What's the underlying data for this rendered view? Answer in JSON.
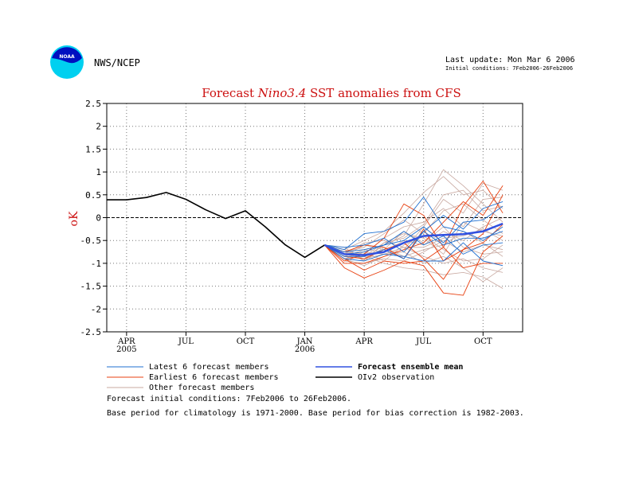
{
  "header": {
    "org": "NWS/NCEP",
    "last_update": "Last update: Mon Mar  6 2006",
    "initial_conditions": "Initial conditions: 7Feb2006-26Feb2006",
    "logo_text": "NOAA"
  },
  "chart_data": {
    "type": "line",
    "title_prefix": "Forecast ",
    "title_italic": "Nino3.4",
    "title_suffix": " SST anomalies from CFS",
    "ylabel": "oK",
    "ylim": [
      -2.5,
      2.5
    ],
    "yticks": [
      2.5,
      2,
      1.5,
      1,
      0.5,
      0,
      -0.5,
      -1,
      -1.5,
      -2,
      -2.5
    ],
    "ytick_labels": [
      "2.5",
      "2",
      "1.5",
      "1",
      "0.5",
      "0",
      "-0.5",
      "-1",
      "-1.5",
      "-2",
      "-2.5"
    ],
    "xlim": [
      0,
      21
    ],
    "xticks": [
      {
        "x": 1,
        "label": "APR",
        "sub": "2005"
      },
      {
        "x": 4,
        "label": "JUL",
        "sub": ""
      },
      {
        "x": 7,
        "label": "OCT",
        "sub": ""
      },
      {
        "x": 10,
        "label": "JAN",
        "sub": "2006"
      },
      {
        "x": 13,
        "label": "APR",
        "sub": ""
      },
      {
        "x": 16,
        "label": "JUL",
        "sub": ""
      },
      {
        "x": 19,
        "label": "OCT",
        "sub": ""
      }
    ],
    "grid": true,
    "zero_line": true,
    "observation": {
      "name": "OIv2 observation",
      "color": "#000000",
      "x": [
        0,
        1,
        2,
        3,
        4,
        5,
        6,
        7,
        8,
        9,
        10,
        11
      ],
      "y": [
        0.39,
        0.39,
        0.44,
        0.55,
        0.4,
        0.17,
        -0.02,
        0.15,
        -0.2,
        -0.59,
        -0.87,
        -0.6
      ]
    },
    "ensemble_mean": {
      "name": "Forecast ensemble mean",
      "color": "#3050e0",
      "x": [
        11,
        12,
        13,
        14,
        15,
        16,
        17,
        18,
        19,
        20
      ],
      "y": [
        -0.6,
        -0.8,
        -0.82,
        -0.75,
        -0.55,
        -0.4,
        -0.38,
        -0.36,
        -0.3,
        -0.13
      ]
    },
    "latest_members": {
      "name": "Latest 6 forecast members",
      "color": "#1f6fd0",
      "x": [
        11,
        12,
        13,
        14,
        15,
        16,
        17,
        18,
        19,
        20
      ],
      "series": [
        [
          -0.6,
          -0.7,
          -0.35,
          -0.3,
          -0.1,
          0.45,
          -0.2,
          -0.3,
          -0.5,
          -0.2
        ],
        [
          -0.6,
          -0.8,
          -0.75,
          -0.6,
          -0.5,
          -0.2,
          -0.55,
          -0.1,
          -0.05,
          0.25
        ],
        [
          -0.6,
          -0.85,
          -0.85,
          -0.7,
          -0.9,
          -0.3,
          0.05,
          -0.25,
          0.2,
          0.35
        ],
        [
          -0.6,
          -0.75,
          -0.7,
          -0.6,
          -0.3,
          -0.6,
          -0.4,
          -0.8,
          -0.6,
          -0.55
        ],
        [
          -0.6,
          -0.65,
          -0.6,
          -0.45,
          -0.75,
          -0.3,
          -0.6,
          -0.45,
          -0.45,
          -0.3
        ],
        [
          -0.6,
          -0.9,
          -0.95,
          -0.8,
          -0.85,
          -0.95,
          -0.95,
          -0.55,
          -0.95,
          -1.05
        ]
      ]
    },
    "earliest_members": {
      "name": "Earliest 6 forecast members",
      "color": "#e84010",
      "x": [
        11,
        12,
        13,
        14,
        15,
        16,
        17,
        18,
        19,
        20
      ],
      "series": [
        [
          -0.6,
          -1.1,
          -1.32,
          -1.15,
          -0.95,
          -1.05,
          -1.65,
          -1.7,
          -0.75,
          -0.4
        ],
        [
          -0.6,
          -0.95,
          -0.8,
          -0.45,
          0.3,
          0.05,
          -0.65,
          0.25,
          0.8,
          0.1
        ],
        [
          -0.6,
          -0.85,
          -0.9,
          -0.7,
          -0.55,
          -0.9,
          -1.35,
          -0.7,
          -0.35,
          0.5
        ],
        [
          -0.6,
          -1.0,
          -1.0,
          -0.85,
          -0.7,
          -0.55,
          -0.1,
          0.35,
          0.05,
          0.7
        ],
        [
          -0.6,
          -0.9,
          -1.15,
          -0.95,
          -1.0,
          -0.95,
          -0.65,
          -1.1,
          -1.0,
          -1.0
        ],
        [
          -0.6,
          -0.75,
          -0.6,
          -0.65,
          -0.9,
          -0.25,
          -0.95,
          -0.7,
          -0.55,
          -0.15
        ]
      ]
    },
    "other_members": {
      "name": "Other forecast members",
      "color": "#c8a8a0",
      "x": [
        11,
        12,
        13,
        14,
        15,
        16,
        17,
        18,
        19,
        20
      ],
      "series": [
        [
          -0.6,
          -0.8,
          -0.9,
          -0.6,
          -0.4,
          0.3,
          1.05,
          0.7,
          0.3,
          -0.1
        ],
        [
          -0.6,
          -0.7,
          -0.5,
          -0.3,
          0.1,
          0.55,
          0.9,
          0.5,
          0.6,
          0.2
        ],
        [
          -0.6,
          -0.9,
          -1.05,
          -0.85,
          -0.7,
          -0.2,
          0.4,
          0.1,
          0.75,
          0.6
        ],
        [
          -0.6,
          -0.75,
          -0.8,
          -0.45,
          -0.2,
          -0.1,
          0.2,
          -0.2,
          0.4,
          0.45
        ],
        [
          -0.6,
          -0.85,
          -0.7,
          -0.75,
          -0.5,
          -0.6,
          -0.3,
          -0.5,
          -0.2,
          0.0
        ],
        [
          -0.6,
          -0.65,
          -0.95,
          -0.55,
          -0.35,
          -0.45,
          -0.8,
          -0.1,
          -0.3,
          -0.4
        ],
        [
          -0.6,
          -0.95,
          -1.0,
          -0.9,
          -0.95,
          -0.75,
          -0.5,
          -0.75,
          -0.6,
          -0.7
        ],
        [
          -0.6,
          -0.8,
          -0.55,
          -0.5,
          -0.65,
          -0.85,
          -1.0,
          -0.9,
          -1.1,
          -1.2
        ],
        [
          -0.6,
          -0.7,
          -0.85,
          -1.0,
          -1.1,
          -1.15,
          -1.25,
          -1.2,
          -1.3,
          -1.55
        ],
        [
          -0.6,
          -0.9,
          -0.75,
          -0.8,
          -0.75,
          -1.0,
          -0.85,
          -1.1,
          -1.4,
          -1.1
        ],
        [
          -0.6,
          -0.75,
          -0.65,
          -0.35,
          -0.05,
          -0.35,
          0.15,
          0.3,
          -0.05,
          -0.35
        ],
        [
          -0.6,
          -0.85,
          -0.6,
          -0.7,
          -0.3,
          -0.55,
          -0.2,
          -0.65,
          -0.8,
          -0.75
        ],
        [
          -0.6,
          -0.7,
          -0.95,
          -0.65,
          -0.85,
          -0.7,
          -0.6,
          -0.3,
          -0.55,
          -0.85
        ],
        [
          -0.6,
          -0.8,
          -0.75,
          -0.95,
          -0.6,
          -0.4,
          -0.7,
          -0.95,
          -0.9,
          -0.6
        ],
        [
          -0.6,
          -0.9,
          -0.85,
          -0.55,
          -0.45,
          -0.15,
          0.5,
          0.6,
          0.15,
          0.25
        ],
        [
          -0.6,
          -0.75,
          -0.9,
          -0.8,
          -0.65,
          -0.65,
          -0.45,
          -0.4,
          -0.25,
          -0.5
        ]
      ]
    }
  },
  "footnotes": {
    "line1": "Forecast initial conditions: 7Feb2006 to 26Feb2006.",
    "line2": "Base period for climatology is 1971-2000. Base period for bias correction is 1982-2003."
  }
}
